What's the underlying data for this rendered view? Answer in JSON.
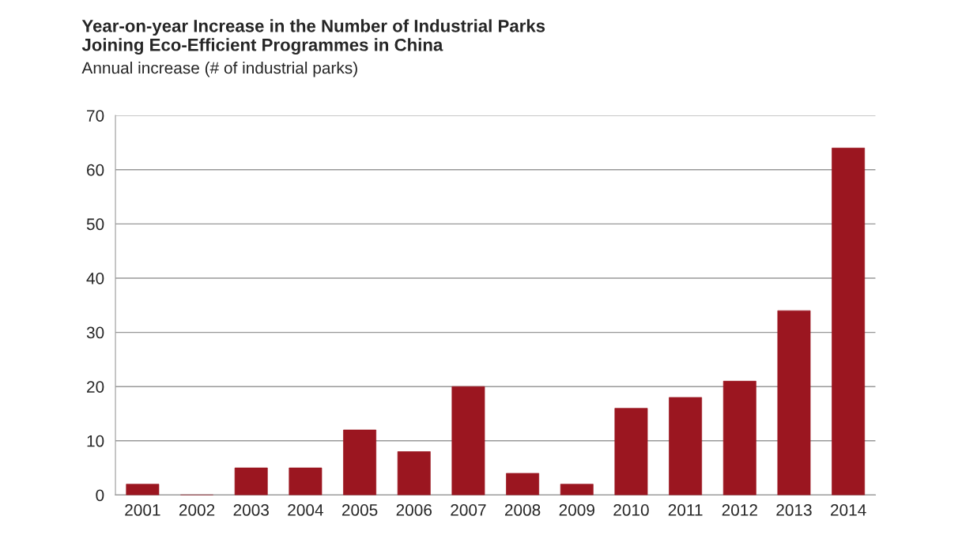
{
  "chart_data": {
    "type": "bar",
    "title": "Year-on-year Increase in the Number of Industrial Parks\nJoining Eco-Efficient Programmes in China",
    "ylabel": "Annual increase (# of industrial parks)",
    "categories": [
      "2001",
      "2002",
      "2003",
      "2004",
      "2005",
      "2006",
      "2007",
      "2008",
      "2009",
      "2010",
      "2011",
      "2012",
      "2013",
      "2014"
    ],
    "values": [
      2,
      0,
      5,
      5,
      12,
      8,
      20,
      4,
      2,
      16,
      18,
      21,
      34,
      64
    ],
    "color": "#9b1620",
    "ylim": [
      0,
      70
    ],
    "yticks": [
      0,
      10,
      20,
      30,
      40,
      50,
      60,
      70
    ],
    "grid": "y"
  }
}
